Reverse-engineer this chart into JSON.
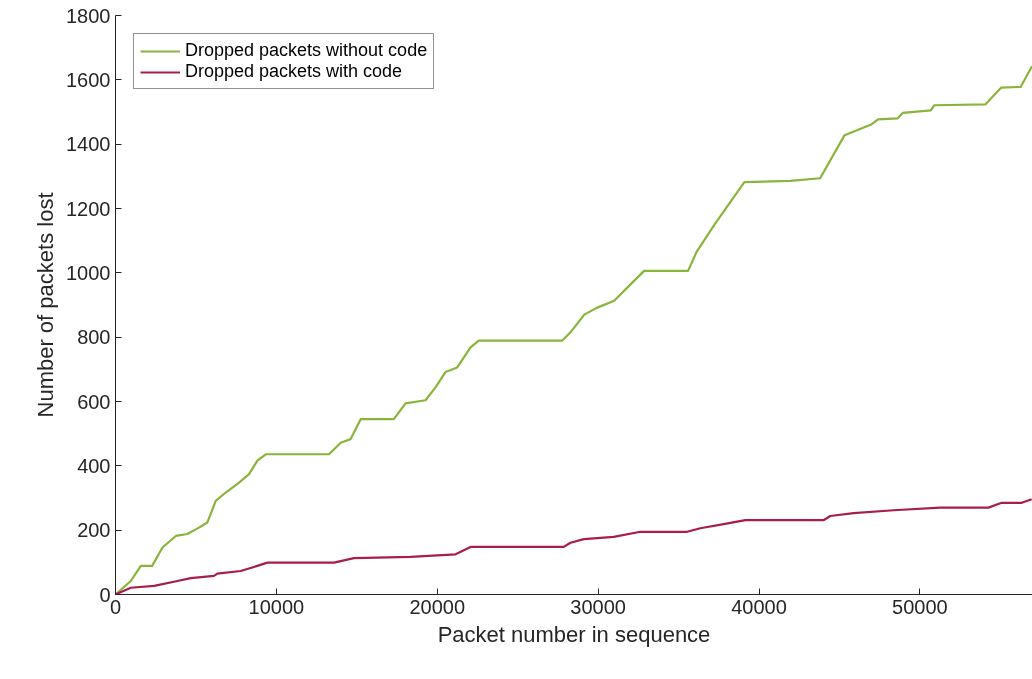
{
  "chart_data": {
    "type": "line",
    "xlabel": "Packet number in sequence",
    "ylabel": "Number of packets lost",
    "xlim": [
      0,
      57000
    ],
    "ylim": [
      0,
      1800
    ],
    "xticks": [
      0,
      10000,
      20000,
      30000,
      40000,
      50000
    ],
    "yticks": [
      0,
      200,
      400,
      600,
      800,
      1000,
      1200,
      1400,
      1600,
      1800
    ],
    "grid": false,
    "legend": "top left",
    "marker": "none",
    "line_style": "solid",
    "series": [
      {
        "name": "Dropped packets without code",
        "color": "#8ab43c",
        "x": [
          0,
          950,
          1570,
          2280,
          2920,
          3750,
          4470,
          5190,
          5710,
          6230,
          6850,
          7680,
          8300,
          8820,
          9340,
          13270,
          14000,
          14610,
          15240,
          17300,
          18030,
          19270,
          19890,
          20520,
          21240,
          22070,
          22580,
          27760,
          28280,
          29140,
          29910,
          31000,
          32090,
          32860,
          35590,
          36140,
          37220,
          39090,
          41940,
          43800,
          45320,
          46970,
          47400,
          48610,
          48930,
          50680,
          50900,
          54080,
          55060,
          56260,
          56970
        ],
        "values": [
          0,
          42,
          89,
          89,
          146,
          182,
          188,
          208,
          224,
          291,
          317,
          348,
          374,
          416,
          436,
          436,
          472,
          483,
          545,
          545,
          594,
          604,
          644,
          692,
          706,
          768,
          789,
          789,
          815,
          870,
          891,
          913,
          968,
          1006,
          1006,
          1067,
          1149,
          1282,
          1286,
          1294,
          1428,
          1461,
          1477,
          1480,
          1497,
          1505,
          1521,
          1524,
          1576,
          1578,
          1642
        ]
      },
      {
        "name": "Dropped packets with code",
        "color": "#a81d4c",
        "x": [
          0,
          950,
          2400,
          3850,
          4680,
          6120,
          6330,
          7780,
          8820,
          9440,
          13580,
          14820,
          18340,
          21140,
          22070,
          27860,
          28280,
          29110,
          30970,
          32630,
          35530,
          36350,
          37800,
          39150,
          44010,
          44430,
          45880,
          48360,
          51260,
          54260,
          55090,
          56330,
          56950
        ],
        "values": [
          0,
          21,
          27,
          42,
          51,
          58,
          65,
          73,
          89,
          99,
          99,
          113,
          117,
          125,
          148,
          148,
          161,
          172,
          179,
          195,
          195,
          206,
          219,
          231,
          231,
          244,
          253,
          262,
          270,
          270,
          285,
          285,
          296
        ]
      }
    ]
  }
}
